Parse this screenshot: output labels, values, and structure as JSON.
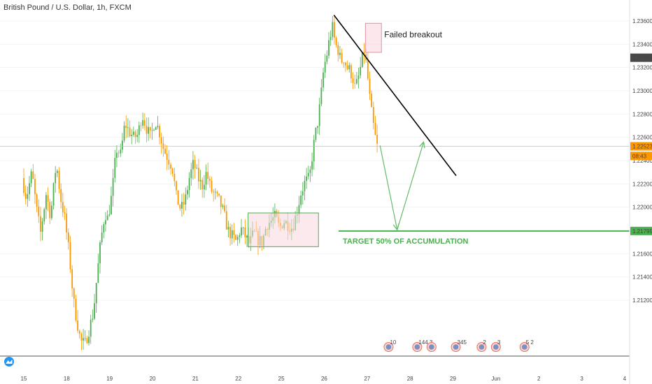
{
  "header": {
    "title": "British Pound / U.S. Dollar, 1h, FXCM"
  },
  "colors": {
    "bull": "#4caf50",
    "bear": "#ff9800",
    "price_line": "#ffb74d",
    "target_line": "#4caf50",
    "trendline": "#000000",
    "box_fill": "#f8d7df",
    "box_stroke": "#e091a6",
    "acc_box_fill": "#f8d7df",
    "acc_box_stroke": "#4caf50",
    "projection": "#66bb6a",
    "last_price_tag": "#4a4a4a",
    "current_tag": "#ff9800",
    "target_tag": "#4caf50",
    "axis_text": "#444444",
    "grid": "#f3f3f3"
  },
  "chart_data": {
    "type": "candlestick",
    "title": "British Pound / U.S. Dollar, 1h, FXCM",
    "xlabel": "",
    "ylabel": "",
    "ylim": [
      1.2072,
      1.2378
    ],
    "grid": false,
    "x_ticks": [
      "15",
      "18",
      "19",
      "20",
      "21",
      "22",
      "25",
      "26",
      "27",
      "28",
      "29",
      "Jun",
      "2",
      "3",
      "4"
    ],
    "y_ticks": [
      "1.23600",
      "1.23400",
      "1.23200",
      "1.23000",
      "1.22800",
      "1.22600",
      "1.22400",
      "1.22200",
      "1.22000",
      "1.21600",
      "1.21400",
      "1.21200"
    ],
    "price_tags": [
      {
        "label": "1.23284",
        "value": 1.23284,
        "kind": "last"
      },
      {
        "label": "1.22523",
        "value": 1.22523,
        "kind": "current"
      },
      {
        "label": "08:43",
        "value": 1.2244,
        "kind": "countdown"
      },
      {
        "label": "1.21795",
        "value": 1.21795,
        "kind": "target"
      }
    ],
    "current_price": 1.22523,
    "target_price": 1.21795,
    "path": [
      [
        0,
        1.2225
      ],
      [
        0.3,
        1.2208
      ],
      [
        0.7,
        1.223
      ],
      [
        1.0,
        1.22
      ],
      [
        1.3,
        1.2178
      ],
      [
        1.7,
        1.2212
      ],
      [
        2.0,
        1.2192
      ],
      [
        2.4,
        1.2238
      ],
      [
        2.7,
        1.2208
      ],
      [
        3.0,
        1.219
      ],
      [
        3.3,
        1.216
      ],
      [
        3.6,
        1.212
      ],
      [
        3.8,
        1.2105
      ],
      [
        4.1,
        1.2085
      ],
      [
        4.4,
        1.2082
      ],
      [
        4.7,
        1.2095
      ],
      [
        5.0,
        1.211
      ],
      [
        5.2,
        1.2135
      ],
      [
        5.5,
        1.217
      ],
      [
        5.8,
        1.2195
      ],
      [
        6.0,
        1.219
      ],
      [
        6.3,
        1.2212
      ],
      [
        6.6,
        1.225
      ],
      [
        6.9,
        1.2245
      ],
      [
        7.2,
        1.2272
      ],
      [
        7.5,
        1.2265
      ],
      [
        7.8,
        1.226
      ],
      [
        8.1,
        1.2262
      ],
      [
        8.4,
        1.228
      ],
      [
        8.7,
        1.2268
      ],
      [
        9.0,
        1.226
      ],
      [
        9.3,
        1.2275
      ],
      [
        9.6,
        1.2265
      ],
      [
        9.9,
        1.225
      ],
      [
        10.2,
        1.2242
      ],
      [
        10.5,
        1.2235
      ],
      [
        10.8,
        1.2208
      ],
      [
        11.1,
        1.2198
      ],
      [
        11.4,
        1.2205
      ],
      [
        11.7,
        1.2225
      ],
      [
        12.0,
        1.2238
      ],
      [
        12.3,
        1.2225
      ],
      [
        12.6,
        1.2218
      ],
      [
        12.9,
        1.223
      ],
      [
        13.2,
        1.2215
      ],
      [
        13.5,
        1.221
      ],
      [
        13.8,
        1.2205
      ],
      [
        14.1,
        1.2195
      ],
      [
        14.4,
        1.218
      ],
      [
        14.7,
        1.2175
      ],
      [
        15.0,
        1.217
      ],
      [
        15.3,
        1.2182
      ],
      [
        15.6,
        1.2175
      ],
      [
        15.9,
        1.2168
      ],
      [
        16.2,
        1.2178
      ],
      [
        16.5,
        1.2172
      ],
      [
        16.8,
        1.217
      ],
      [
        17.1,
        1.2185
      ],
      [
        17.4,
        1.2188
      ],
      [
        17.7,
        1.2192
      ],
      [
        18.0,
        1.2182
      ],
      [
        18.3,
        1.2188
      ],
      [
        18.6,
        1.2185
      ],
      [
        18.9,
        1.2182
      ],
      [
        19.2,
        1.2195
      ],
      [
        19.5,
        1.2212
      ],
      [
        19.8,
        1.2222
      ],
      [
        20.1,
        1.2225
      ],
      [
        20.3,
        1.2245
      ],
      [
        20.5,
        1.2262
      ],
      [
        20.7,
        1.2275
      ],
      [
        20.9,
        1.2295
      ],
      [
        21.1,
        1.232
      ],
      [
        21.3,
        1.233
      ],
      [
        21.5,
        1.2345
      ],
      [
        21.7,
        1.2355
      ],
      [
        21.9,
        1.234
      ],
      [
        22.1,
        1.2335
      ],
      [
        22.3,
        1.2325
      ],
      [
        22.5,
        1.2328
      ],
      [
        22.7,
        1.232
      ],
      [
        22.9,
        1.2318
      ],
      [
        23.1,
        1.2312
      ],
      [
        23.3,
        1.2302
      ],
      [
        23.5,
        1.231
      ],
      [
        23.7,
        1.2322
      ],
      [
        23.9,
        1.2335
      ],
      [
        24.1,
        1.232
      ],
      [
        24.3,
        1.2295
      ],
      [
        24.5,
        1.2275
      ],
      [
        24.7,
        1.226
      ],
      [
        24.8,
        1.22523
      ]
    ],
    "annotations": {
      "failed_breakout_box": {
        "label": "Failed breakout",
        "x": [
          23.88,
          25.0
        ],
        "y": [
          1.2333,
          1.2358
        ]
      },
      "accumulation_box": {
        "x": [
          15.68,
          20.6
        ],
        "y": [
          1.2166,
          1.2195
        ]
      },
      "trendline": {
        "from": [
          21.68,
          1.2365
        ],
        "to": [
          30.22,
          1.2227
        ]
      },
      "target_label": {
        "text": "TARGET 50% OF ACCUMULATION",
        "value": 1.21795
      },
      "projection": [
        [
          24.9,
          1.2253
        ],
        [
          26.1,
          1.21805
        ],
        [
          27.95,
          1.2256
        ]
      ]
    },
    "events": [
      {
        "label": "10",
        "x": 25.5
      },
      {
        "label": "144 3",
        "x": 27.5
      },
      {
        "label": "",
        "x": 28.5
      },
      {
        "label": "345",
        "x": 30.2
      },
      {
        "label": "2",
        "x": 32.0
      },
      {
        "label": "3",
        "x": 33.0
      },
      {
        "label": "5 2",
        "x": 35.0
      }
    ]
  }
}
